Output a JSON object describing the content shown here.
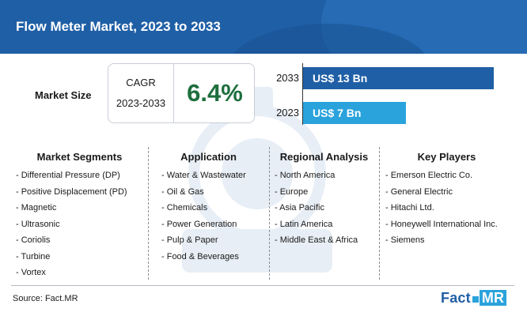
{
  "title": "Flow Meter Market, 2023 to 2033",
  "market_size": {
    "label": "Market Size",
    "cagr_label": "CAGR",
    "cagr_period": "2023-2033",
    "cagr_value": "6.4%"
  },
  "colors": {
    "header": "#1f5fa6",
    "bar_2033": "#1f5fa6",
    "bar_2023": "#2aa3dc",
    "cagr": "#1d6e3d"
  },
  "chart_data": {
    "type": "bar",
    "orientation": "horizontal",
    "categories": [
      "2033",
      "2023"
    ],
    "values": [
      13,
      7
    ],
    "value_labels": [
      "US$ 13 Bn",
      "US$ 7 Bn"
    ],
    "unit": "US$ Bn",
    "title": "",
    "xlabel": "",
    "ylabel": ""
  },
  "columns": [
    {
      "heading": "Market Segments",
      "items": [
        "- Differential Pressure (DP)",
        "- Positive Displacement (PD)",
        "- Magnetic",
        "- Ultrasonic",
        "- Coriolis",
        "- Turbine",
        "- Vortex"
      ]
    },
    {
      "heading": "Application",
      "items": [
        "- Water & Wastewater",
        "- Oil & Gas",
        "- Chemicals",
        "- Power Generation",
        "- Pulp & Paper",
        "- Food & Beverages"
      ]
    },
    {
      "heading": "Regional Analysis",
      "items": [
        "- North America",
        "- Europe",
        "- Asia Pacific",
        "- Latin America",
        "- Middle East & Africa"
      ]
    },
    {
      "heading": "Key Players",
      "items": [
        "- Emerson Electric Co.",
        "- General Electric",
        "- Hitachi Ltd.",
        "- Honeywell International Inc.",
        "- Siemens"
      ]
    }
  ],
  "source": "Source: Fact.MR",
  "logo": {
    "part1": "Fact",
    "part2": "MR"
  }
}
